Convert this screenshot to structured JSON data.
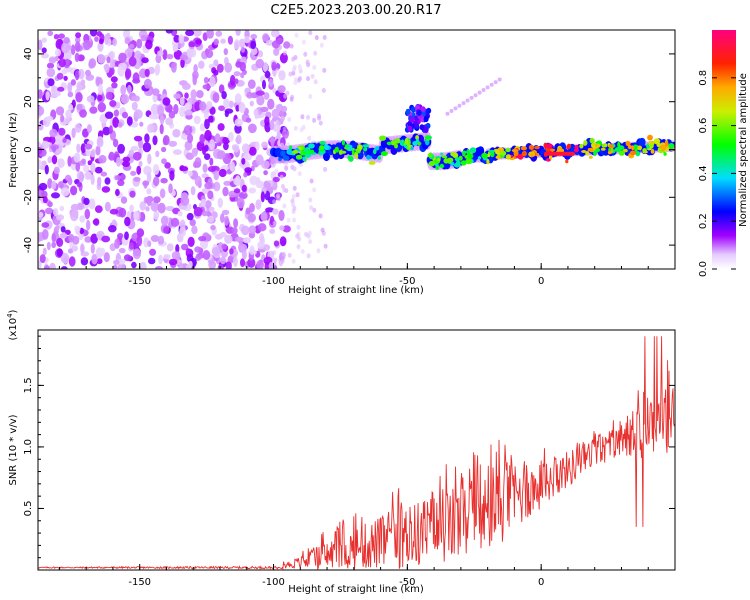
{
  "figure": {
    "title": "C2E5.2023.203.00.20.R17"
  },
  "chart_data": [
    {
      "type": "heatmap",
      "name": "spectrogram",
      "title": "C2E5.2023.203.00.20.R17",
      "xlabel": "Height of straight line (km)",
      "ylabel": "Frequency (Hz)",
      "xlim": [
        -188,
        50
      ],
      "ylim": [
        -50,
        50
      ],
      "xticks": [
        -150,
        -100,
        -50,
        0
      ],
      "yticks": [
        -40,
        -20,
        0,
        20,
        40
      ],
      "colorbar": {
        "label": "Normalized spectral amplitude",
        "range": [
          0,
          1
        ],
        "ticks": [
          0.0,
          0.2,
          0.4,
          0.6,
          0.8
        ],
        "tick_labels": [
          "0.0",
          "0.2",
          "0.4",
          "0.6",
          "0.8"
        ],
        "colormap": [
          "#ffffff",
          "#e6ccff",
          "#8800ff",
          "#0000ff",
          "#00ddff",
          "#00ff00",
          "#ffcc00",
          "#ff0000",
          "#ff0080"
        ]
      },
      "regions": [
        {
          "desc": "broadband noise",
          "x": [
            -188,
            -95
          ],
          "freq": [
            -50,
            50
          ],
          "amplitude": 0.15
        },
        {
          "desc": "signal band",
          "x": [
            -100,
            50
          ],
          "freq_center_start": 0,
          "freq_center_end": 0,
          "amplitude_range": [
            0.3,
            1.0
          ]
        },
        {
          "desc": "side feature",
          "x": [
            -50,
            -42
          ],
          "freq": [
            8,
            18
          ],
          "amplitude": 0.35
        }
      ]
    },
    {
      "type": "line",
      "name": "snr",
      "xlabel": "Height of straight line (km)",
      "ylabel": "SNR (10 * v/v)",
      "scale_label": "(x10^4)",
      "scale_base": "x10",
      "scale_exp": "4",
      "xlim": [
        -188,
        50
      ],
      "ylim": [
        0,
        1.95
      ],
      "xticks": [
        -150,
        -100,
        -50,
        0
      ],
      "yticks": [
        0.5,
        1.0,
        1.5
      ],
      "ytick_labels": [
        "0.5",
        "1.0",
        "1.5"
      ],
      "color": "#e8302e",
      "series": [
        {
          "name": "SNR",
          "envelope_x": [
            -188,
            -100,
            -90,
            -80,
            -60,
            -40,
            -20,
            -10,
            0,
            10,
            20,
            30,
            40,
            50
          ],
          "envelope_mean": [
            0.02,
            0.02,
            0.06,
            0.12,
            0.22,
            0.32,
            0.45,
            0.6,
            0.68,
            0.82,
            0.95,
            1.05,
            1.15,
            1.25
          ],
          "envelope_spread": [
            0.005,
            0.01,
            0.05,
            0.12,
            0.22,
            0.3,
            0.32,
            0.3,
            0.18,
            0.15,
            0.12,
            0.12,
            0.25,
            0.3
          ]
        }
      ]
    }
  ]
}
